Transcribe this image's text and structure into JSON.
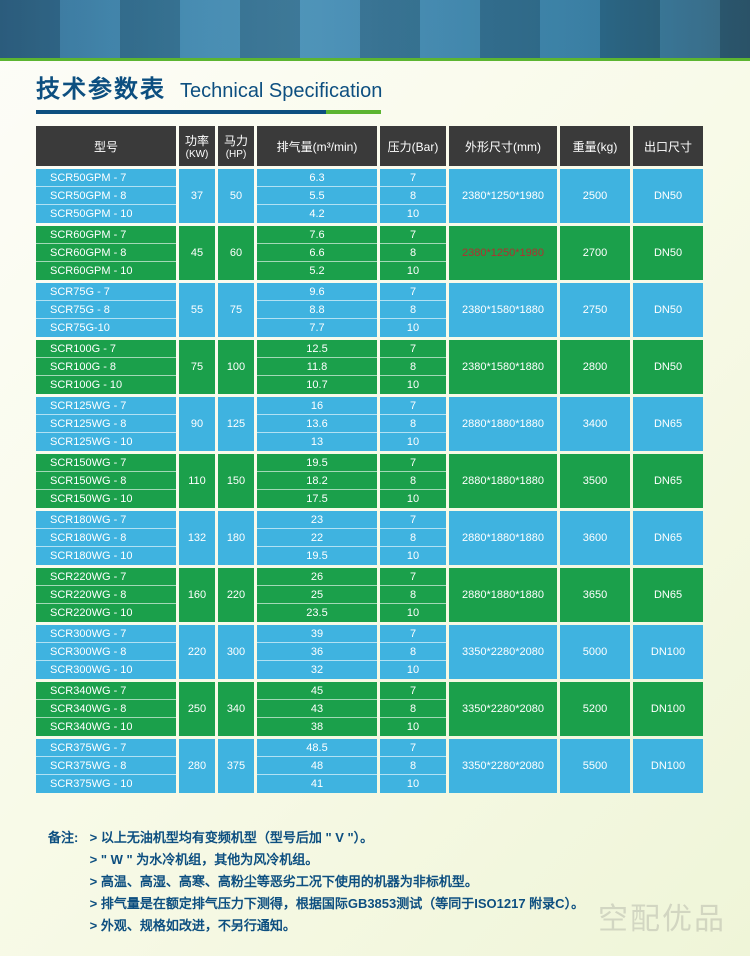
{
  "title_cn": "技术参数表",
  "title_en": "Technical Specification",
  "headers": {
    "model": "型号",
    "kw_top": "功率",
    "kw_sub": "(KW)",
    "hp_top": "马力",
    "hp_sub": "(HP)",
    "air": "排气量(m³/min)",
    "bar": "压力(Bar)",
    "dim": "外形尺寸(mm)",
    "wt": "重量(kg)",
    "out": "出口尺寸"
  },
  "colors": {
    "header_bg": "#3a3a3a",
    "blue": "#3fb3e0",
    "green": "#1ba04b",
    "accent_green": "#5cb531",
    "title": "#0d4f80",
    "dim_highlight": "#b03030"
  },
  "groups": [
    {
      "color": "blue",
      "models": [
        "SCR50GPM - 7",
        "SCR50GPM - 8",
        "SCR50GPM - 10"
      ],
      "kw": "37",
      "hp": "50",
      "air": [
        "6.3",
        "5.5",
        "4.2"
      ],
      "bar": [
        "7",
        "8",
        "10"
      ],
      "dim": "2380*1250*1980",
      "wt": "2500",
      "out": "DN50",
      "dim_highlight": false
    },
    {
      "color": "green",
      "models": [
        "SCR60GPM - 7",
        "SCR60GPM - 8",
        "SCR60GPM - 10"
      ],
      "kw": "45",
      "hp": "60",
      "air": [
        "7.6",
        "6.6",
        "5.2"
      ],
      "bar": [
        "7",
        "8",
        "10"
      ],
      "dim": "2380*1250*1980",
      "wt": "2700",
      "out": "DN50",
      "dim_highlight": true
    },
    {
      "color": "blue",
      "models": [
        "SCR75G - 7",
        "SCR75G - 8",
        "SCR75G-10"
      ],
      "kw": "55",
      "hp": "75",
      "air": [
        "9.6",
        "8.8",
        "7.7"
      ],
      "bar": [
        "7",
        "8",
        "10"
      ],
      "dim": "2380*1580*1880",
      "wt": "2750",
      "out": "DN50",
      "dim_highlight": false
    },
    {
      "color": "green",
      "models": [
        "SCR100G - 7",
        "SCR100G - 8",
        "SCR100G - 10"
      ],
      "kw": "75",
      "hp": "100",
      "air": [
        "12.5",
        "11.8",
        "10.7"
      ],
      "bar": [
        "7",
        "8",
        "10"
      ],
      "dim": "2380*1580*1880",
      "wt": "2800",
      "out": "DN50",
      "dim_highlight": false
    },
    {
      "color": "blue",
      "models": [
        "SCR125WG - 7",
        "SCR125WG - 8",
        "SCR125WG - 10"
      ],
      "kw": "90",
      "hp": "125",
      "air": [
        "16",
        "13.6",
        "13"
      ],
      "bar": [
        "7",
        "8",
        "10"
      ],
      "dim": "2880*1880*1880",
      "wt": "3400",
      "out": "DN65",
      "dim_highlight": false
    },
    {
      "color": "green",
      "models": [
        "SCR150WG - 7",
        "SCR150WG - 8",
        "SCR150WG - 10"
      ],
      "kw": "110",
      "hp": "150",
      "air": [
        "19.5",
        "18.2",
        "17.5"
      ],
      "bar": [
        "7",
        "8",
        "10"
      ],
      "dim": "2880*1880*1880",
      "wt": "3500",
      "out": "DN65",
      "dim_highlight": false
    },
    {
      "color": "blue",
      "models": [
        "SCR180WG - 7",
        "SCR180WG - 8",
        "SCR180WG - 10"
      ],
      "kw": "132",
      "hp": "180",
      "air": [
        "23",
        "22",
        "19.5"
      ],
      "bar": [
        "7",
        "8",
        "10"
      ],
      "dim": "2880*1880*1880",
      "wt": "3600",
      "out": "DN65",
      "dim_highlight": false
    },
    {
      "color": "green",
      "models": [
        "SCR220WG - 7",
        "SCR220WG - 8",
        "SCR220WG - 10"
      ],
      "kw": "160",
      "hp": "220",
      "air": [
        "26",
        "25",
        "23.5"
      ],
      "bar": [
        "7",
        "8",
        "10"
      ],
      "dim": "2880*1880*1880",
      "wt": "3650",
      "out": "DN65",
      "dim_highlight": false
    },
    {
      "color": "blue",
      "models": [
        "SCR300WG - 7",
        "SCR300WG - 8",
        "SCR300WG - 10"
      ],
      "kw": "220",
      "hp": "300",
      "air": [
        "39",
        "36",
        "32"
      ],
      "bar": [
        "7",
        "8",
        "10"
      ],
      "dim": "3350*2280*2080",
      "wt": "5000",
      "out": "DN100",
      "dim_highlight": false
    },
    {
      "color": "green",
      "models": [
        "SCR340WG - 7",
        "SCR340WG - 8",
        "SCR340WG - 10"
      ],
      "kw": "250",
      "hp": "340",
      "air": [
        "45",
        "43",
        "38"
      ],
      "bar": [
        "7",
        "8",
        "10"
      ],
      "dim": "3350*2280*2080",
      "wt": "5200",
      "out": "DN100",
      "dim_highlight": false
    },
    {
      "color": "blue",
      "models": [
        "SCR375WG - 7",
        "SCR375WG - 8",
        "SCR375WG - 10"
      ],
      "kw": "280",
      "hp": "375",
      "air": [
        "48.5",
        "48",
        "41"
      ],
      "bar": [
        "7",
        "8",
        "10"
      ],
      "dim": "3350*2280*2080",
      "wt": "5500",
      "out": "DN100",
      "dim_highlight": false
    }
  ],
  "notes_label": "备注:",
  "notes": [
    "> 以上无油机型均有变频机型（型号后加 \" V \"）。",
    "> \" W \" 为水冷机组，其他为风冷机组。",
    "> 高温、高湿、高寒、高粉尘等恶劣工况下使用的机器为非标机型。",
    "> 排气量是在额定排气压力下测得，根据国际GB3853测试（等同于ISO1217 附录C）。",
    "> 外观、规格如改进，不另行通知。"
  ],
  "watermark": "空配优品"
}
